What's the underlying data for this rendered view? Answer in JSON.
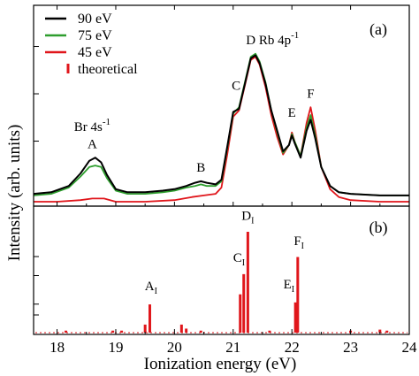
{
  "chart_data": [
    {
      "panel": "(a)",
      "type": "line",
      "xlabel": "Ionization energy (eV)",
      "ylabel": "Intensity (arb. units)",
      "xlim": [
        17.6,
        24.0
      ],
      "ylim": [
        0,
        1.0
      ],
      "x_ticks": [
        "18",
        "19",
        "20",
        "21",
        "22",
        "23",
        "24"
      ],
      "legend_position": "top-left",
      "series": [
        {
          "name": "90 eV",
          "color": "#000000",
          "points": [
            [
              17.6,
              0.05
            ],
            [
              17.9,
              0.06
            ],
            [
              18.2,
              0.1
            ],
            [
              18.4,
              0.18
            ],
            [
              18.55,
              0.26
            ],
            [
              18.65,
              0.28
            ],
            [
              18.75,
              0.25
            ],
            [
              18.85,
              0.17
            ],
            [
              19.0,
              0.08
            ],
            [
              19.2,
              0.06
            ],
            [
              19.5,
              0.06
            ],
            [
              19.8,
              0.07
            ],
            [
              20.0,
              0.08
            ],
            [
              20.2,
              0.1
            ],
            [
              20.35,
              0.12
            ],
            [
              20.45,
              0.13
            ],
            [
              20.55,
              0.12
            ],
            [
              20.7,
              0.11
            ],
            [
              20.8,
              0.14
            ],
            [
              20.9,
              0.35
            ],
            [
              21.0,
              0.57
            ],
            [
              21.1,
              0.59
            ],
            [
              21.2,
              0.75
            ],
            [
              21.3,
              0.91
            ],
            [
              21.38,
              0.93
            ],
            [
              21.45,
              0.88
            ],
            [
              21.55,
              0.75
            ],
            [
              21.65,
              0.58
            ],
            [
              21.75,
              0.45
            ],
            [
              21.85,
              0.32
            ],
            [
              21.95,
              0.36
            ],
            [
              22.0,
              0.42
            ],
            [
              22.05,
              0.37
            ],
            [
              22.15,
              0.28
            ],
            [
              22.25,
              0.45
            ],
            [
              22.32,
              0.52
            ],
            [
              22.4,
              0.4
            ],
            [
              22.5,
              0.22
            ],
            [
              22.65,
              0.1
            ],
            [
              22.8,
              0.06
            ],
            [
              23.0,
              0.05
            ],
            [
              23.5,
              0.04
            ],
            [
              24.0,
              0.04
            ]
          ]
        },
        {
          "name": "75 eV",
          "color": "#2e9e2e",
          "points": [
            [
              17.6,
              0.04
            ],
            [
              17.9,
              0.05
            ],
            [
              18.2,
              0.09
            ],
            [
              18.4,
              0.16
            ],
            [
              18.55,
              0.22
            ],
            [
              18.65,
              0.23
            ],
            [
              18.75,
              0.22
            ],
            [
              18.85,
              0.15
            ],
            [
              19.0,
              0.07
            ],
            [
              19.2,
              0.05
            ],
            [
              19.5,
              0.05
            ],
            [
              19.8,
              0.06
            ],
            [
              20.0,
              0.07
            ],
            [
              20.2,
              0.09
            ],
            [
              20.35,
              0.1
            ],
            [
              20.45,
              0.11
            ],
            [
              20.55,
              0.1
            ],
            [
              20.7,
              0.1
            ],
            [
              20.8,
              0.13
            ],
            [
              20.9,
              0.34
            ],
            [
              21.0,
              0.56
            ],
            [
              21.1,
              0.6
            ],
            [
              21.2,
              0.76
            ],
            [
              21.3,
              0.92
            ],
            [
              21.38,
              0.94
            ],
            [
              21.45,
              0.89
            ],
            [
              21.55,
              0.76
            ],
            [
              21.65,
              0.58
            ],
            [
              21.75,
              0.44
            ],
            [
              21.85,
              0.31
            ],
            [
              21.95,
              0.36
            ],
            [
              22.0,
              0.43
            ],
            [
              22.05,
              0.38
            ],
            [
              22.15,
              0.29
            ],
            [
              22.25,
              0.47
            ],
            [
              22.32,
              0.55
            ],
            [
              22.4,
              0.42
            ],
            [
              22.5,
              0.22
            ],
            [
              22.65,
              0.1
            ],
            [
              22.8,
              0.06
            ],
            [
              23.0,
              0.05
            ],
            [
              23.5,
              0.04
            ],
            [
              24.0,
              0.04
            ]
          ]
        },
        {
          "name": "45 eV",
          "color": "#e0161b",
          "points": [
            [
              17.6,
              0.0
            ],
            [
              18.0,
              0.0
            ],
            [
              18.4,
              0.01
            ],
            [
              18.6,
              0.02
            ],
            [
              18.8,
              0.02
            ],
            [
              19.0,
              0.0
            ],
            [
              19.5,
              0.0
            ],
            [
              20.0,
              0.01
            ],
            [
              20.3,
              0.03
            ],
            [
              20.5,
              0.04
            ],
            [
              20.7,
              0.05
            ],
            [
              20.8,
              0.09
            ],
            [
              20.9,
              0.3
            ],
            [
              21.0,
              0.54
            ],
            [
              21.1,
              0.58
            ],
            [
              21.2,
              0.74
            ],
            [
              21.3,
              0.9
            ],
            [
              21.38,
              0.92
            ],
            [
              21.45,
              0.87
            ],
            [
              21.55,
              0.73
            ],
            [
              21.65,
              0.55
            ],
            [
              21.75,
              0.41
            ],
            [
              21.85,
              0.3
            ],
            [
              21.95,
              0.36
            ],
            [
              22.0,
              0.44
            ],
            [
              22.05,
              0.38
            ],
            [
              22.15,
              0.29
            ],
            [
              22.25,
              0.5
            ],
            [
              22.32,
              0.6
            ],
            [
              22.4,
              0.45
            ],
            [
              22.5,
              0.22
            ],
            [
              22.65,
              0.08
            ],
            [
              22.8,
              0.03
            ],
            [
              23.0,
              0.01
            ],
            [
              23.5,
              0.0
            ],
            [
              24.0,
              0.0
            ]
          ]
        }
      ],
      "annotations": [
        {
          "text": "Br 4s",
          "sup": "-1",
          "x": 18.6,
          "y": 0.45
        },
        {
          "text": "A",
          "x": 18.6,
          "y": 0.34
        },
        {
          "text": "B",
          "x": 20.45,
          "y": 0.19
        },
        {
          "text": "C",
          "x": 21.05,
          "y": 0.71
        },
        {
          "text": "D",
          "x": 21.3,
          "y": 1.0
        },
        {
          "text": "Rb 4p",
          "sup": "-1",
          "x": 21.78,
          "y": 1.0
        },
        {
          "text": "E",
          "x": 22.0,
          "y": 0.54
        },
        {
          "text": "F",
          "x": 22.32,
          "y": 0.66
        }
      ]
    },
    {
      "panel": "(b)",
      "type": "bar",
      "xlim": [
        17.6,
        24.0
      ],
      "ylim": [
        0,
        1.0
      ],
      "series": [
        {
          "name": "theoretical",
          "color": "#e0161b",
          "bars": [
            [
              18.15,
              0.02
            ],
            [
              18.95,
              0.02
            ],
            [
              19.1,
              0.02
            ],
            [
              19.5,
              0.08
            ],
            [
              19.58,
              0.28
            ],
            [
              20.12,
              0.08
            ],
            [
              20.2,
              0.04
            ],
            [
              20.45,
              0.02
            ],
            [
              21.12,
              0.38
            ],
            [
              21.18,
              0.58
            ],
            [
              21.25,
              1.0
            ],
            [
              21.62,
              0.02
            ],
            [
              22.06,
              0.3
            ],
            [
              22.1,
              0.75
            ],
            [
              23.0,
              0.02
            ],
            [
              23.5,
              0.03
            ],
            [
              23.62,
              0.02
            ]
          ]
        }
      ],
      "annotations": [
        {
          "text": "A",
          "sub": "I",
          "x": 19.6,
          "y": 0.42
        },
        {
          "text": "C",
          "sub": "I",
          "x": 21.1,
          "y": 0.7
        },
        {
          "text": "D",
          "sub": "I",
          "x": 21.25,
          "y": 1.12
        },
        {
          "text": "E",
          "sub": "I",
          "x": 21.95,
          "y": 0.44
        },
        {
          "text": "F",
          "sub": "I",
          "x": 22.12,
          "y": 0.87
        }
      ]
    }
  ],
  "legend": [
    {
      "label": "90 eV",
      "color": "#000000",
      "marker": "line"
    },
    {
      "label": "75 eV",
      "color": "#2e9e2e",
      "marker": "line"
    },
    {
      "label": "45 eV",
      "color": "#e0161b",
      "marker": "line"
    },
    {
      "label": "theoretical",
      "color": "#e0161b",
      "marker": "bar"
    }
  ],
  "panel_labels": {
    "a": "(a)",
    "b": "(b)"
  }
}
